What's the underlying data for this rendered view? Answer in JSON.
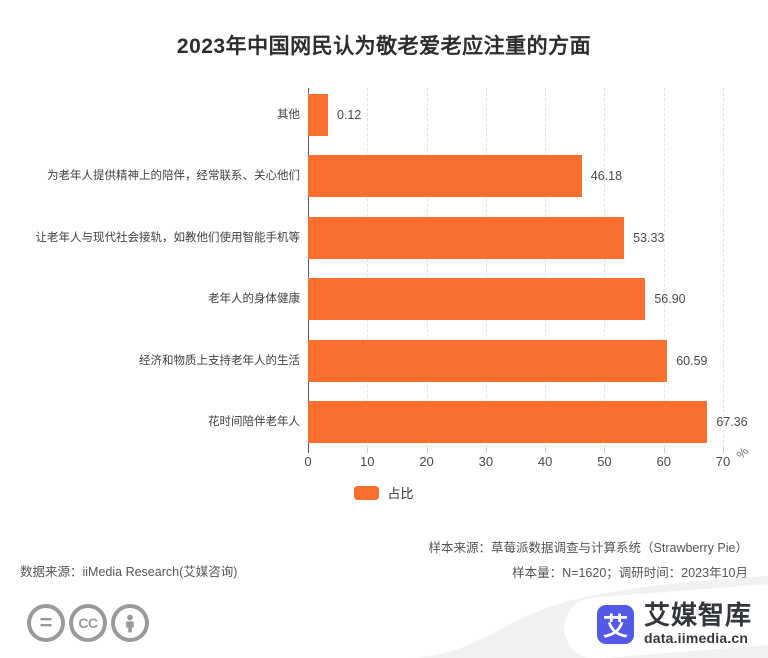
{
  "title": "2023年中国网民认为敬老爱老应注重的方面",
  "chart_data": {
    "type": "bar",
    "orientation": "horizontal",
    "title": "2023年中国网民认为敬老爱老应注重的方面",
    "series_name": "占比",
    "categories": [
      "其他",
      "为老年人提供精神上的陪伴，经常联系、关心他们",
      "让老年人与现代社会接轨，如教他们使用智能手机等",
      "老年人的身体健康",
      "经济和物质上支持老年人的生活",
      "花时间陪伴老年人"
    ],
    "values": [
      0.12,
      46.18,
      53.33,
      56.9,
      60.59,
      67.36
    ],
    "value_labels": [
      "0.12",
      "46.18",
      "53.33",
      "56.90",
      "60.59",
      "67.36"
    ],
    "x_ticks": [
      0,
      10,
      20,
      30,
      40,
      50,
      60,
      70
    ],
    "xlim": [
      0,
      70
    ],
    "x_unit": "%",
    "grid": "vertical-dashed",
    "bar_color": "#fa6e2e",
    "legend_position": "bottom"
  },
  "legend": {
    "label": "占比"
  },
  "footer": {
    "data_source": "数据来源：iiMedia Research(艾媒咨询)",
    "sample_source": "样本来源：草莓派数据调查与计算系统（Strawberry Pie）",
    "sample_info": "样本量：N=1620；调研时间：2023年10月"
  },
  "branding": {
    "license_icons": [
      "equals-icon",
      "cc-icon",
      "attribution-person-icon"
    ],
    "equals_glyph": "=",
    "cc_glyph": "CC",
    "logo_char": "艾",
    "logo_name": "艾媒智库",
    "logo_url_text": "data.iimedia.cn",
    "logo_color": "#5358e6",
    "swoosh_color": "#f1f1f3"
  }
}
